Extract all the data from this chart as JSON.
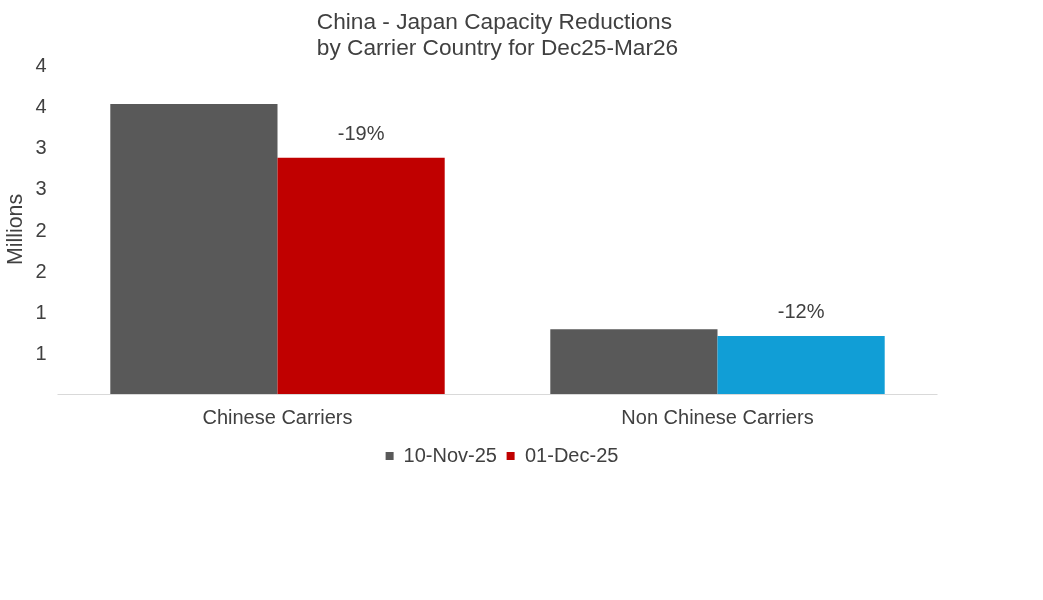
{
  "chart_data": {
    "type": "bar",
    "title": "China - Japan Capacity Reductions\nby Carrier Country for Dec25-Mar26",
    "ylabel": "Millions",
    "categories": [
      "Chinese Carriers",
      "Non Chinese Carriers"
    ],
    "series": [
      {
        "name": "10-Nov-25",
        "color": "#595959",
        "values": [
          3.52,
          0.79
        ]
      },
      {
        "name": "01-Dec-25",
        "color": "#c00000",
        "colors": [
          "#c00000",
          "#119ed6"
        ],
        "values": [
          2.87,
          0.71
        ]
      }
    ],
    "annotations": [
      "-19%",
      "-12%"
    ],
    "ylim": [
      0,
      4.0
    ],
    "yticks": [
      {
        "value": 0.5,
        "label": "1"
      },
      {
        "value": 1.0,
        "label": "1"
      },
      {
        "value": 1.5,
        "label": "2"
      },
      {
        "value": 2.0,
        "label": "2"
      },
      {
        "value": 2.5,
        "label": "3"
      },
      {
        "value": 3.0,
        "label": "3"
      },
      {
        "value": 3.5,
        "label": "4"
      },
      {
        "value": 4.0,
        "label": "4"
      }
    ],
    "grid": false,
    "legend": "bottom"
  }
}
